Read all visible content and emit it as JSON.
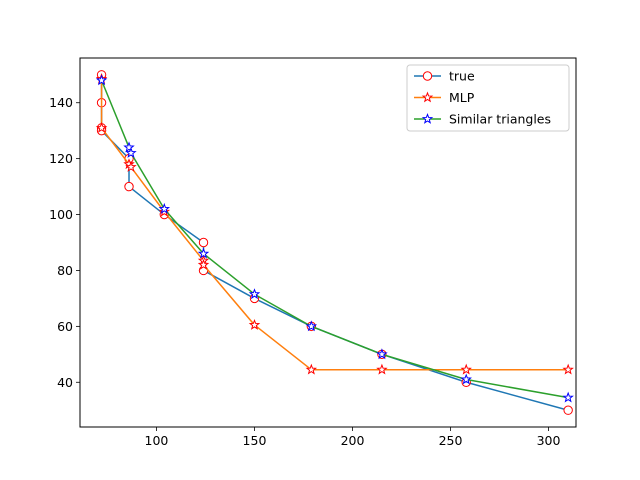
{
  "chart_data": {
    "type": "line",
    "title": "",
    "xlabel": "",
    "ylabel": "",
    "xlim": [
      61,
      314
    ],
    "ylim": [
      24,
      156
    ],
    "xticks": [
      100,
      150,
      200,
      250,
      300
    ],
    "yticks": [
      40,
      60,
      80,
      100,
      120,
      140
    ],
    "grid": false,
    "legend_position": "top-right",
    "series": [
      {
        "name": "true",
        "color": "#1f77b4",
        "marker": "circle-open",
        "marker_color": "#ff0000",
        "x": [
          72,
          72,
          72,
          72,
          86,
          86,
          104,
          124,
          124,
          150,
          179,
          215,
          258,
          310
        ],
        "y": [
          150,
          140,
          131,
          130,
          120,
          110,
          100,
          90,
          80,
          70,
          60,
          50,
          40,
          30
        ]
      },
      {
        "name": "MLP",
        "color": "#ff7f0e",
        "marker": "star-open",
        "marker_color": "#ff0000",
        "x": [
          72,
          72,
          86,
          87,
          104,
          124,
          124,
          150,
          179,
          215,
          258,
          310
        ],
        "y": [
          148.5,
          131,
          118,
          117,
          101,
          83.5,
          82,
          60.5,
          44.5,
          44.5,
          44.5,
          44.5
        ]
      },
      {
        "name": "Similar triangles",
        "color": "#2ca02c",
        "marker": "star-open",
        "marker_color": "#0000ff",
        "x": [
          72,
          86,
          87,
          104,
          124,
          150,
          179,
          215,
          258,
          310
        ],
        "y": [
          148,
          124,
          122,
          102,
          86,
          71.5,
          60,
          50,
          41,
          34.5
        ]
      }
    ]
  }
}
